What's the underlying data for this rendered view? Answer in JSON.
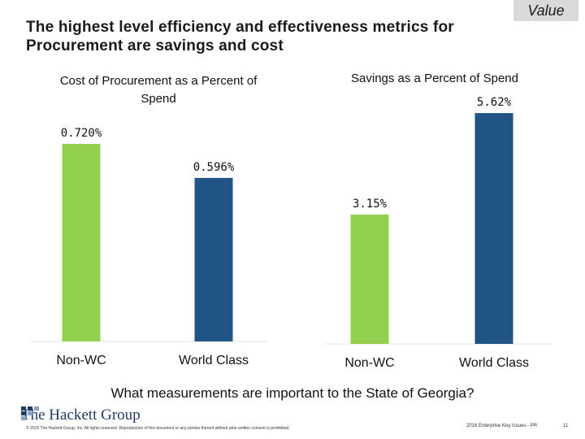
{
  "slide": {
    "title": "The highest level efficiency and effectiveness metrics for Procurement are savings and cost",
    "tag": "Value",
    "question": "What measurements are important to the State of Georgia?",
    "logo_text": "The Hackett Group",
    "copyright": "© 2015 The Hackett Group, Inc. All rights reserved. Reproduction of this document or any portion thereof without prior written consent is prohibited.",
    "footer_right": "2016 Enterprise Key Issues - PR",
    "page_number": "11"
  },
  "colors": {
    "non_wc": "#92d050",
    "world_class": "#1f5485",
    "grid": "#e6e6e6",
    "logo": "#1f3c66"
  },
  "chart_data": [
    {
      "type": "bar",
      "title": "Cost of Procurement as a Percent of Spend",
      "categories": [
        "Non-WC",
        "World Class"
      ],
      "values": [
        0.72,
        0.596
      ],
      "value_labels": [
        "0.720%",
        "0.596%"
      ],
      "unit": "%",
      "ylim": [
        0,
        0.8
      ]
    },
    {
      "type": "bar",
      "title": "Savings as a Percent of Spend",
      "categories": [
        "Non-WC",
        "World Class"
      ],
      "values": [
        3.15,
        5.62
      ],
      "value_labels": [
        "3.15%",
        "5.62%"
      ],
      "unit": "%",
      "ylim": [
        0,
        5.8
      ]
    }
  ]
}
